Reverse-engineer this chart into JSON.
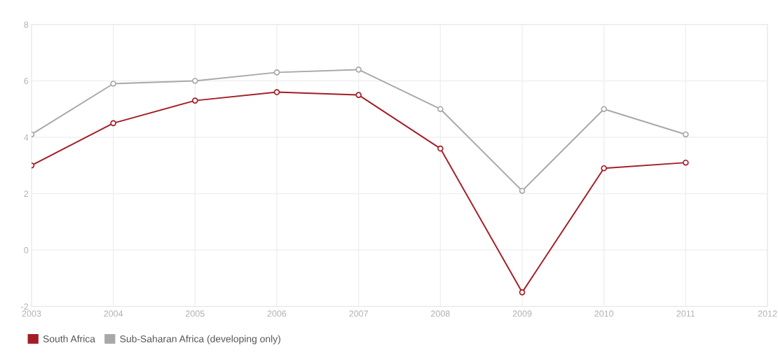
{
  "chart_data": {
    "type": "line",
    "x": [
      2003,
      2004,
      2005,
      2006,
      2007,
      2008,
      2009,
      2010,
      2011
    ],
    "series": [
      {
        "name": "South Africa",
        "color": "#a31d25",
        "values": [
          3.0,
          4.5,
          5.3,
          5.6,
          5.5,
          3.6,
          -1.5,
          2.9,
          3.1
        ]
      },
      {
        "name": "Sub-Saharan Africa (developing only)",
        "color": "#a8a8a8",
        "values": [
          4.1,
          5.9,
          6.0,
          6.3,
          6.4,
          5.0,
          2.1,
          5.0,
          4.1
        ]
      }
    ],
    "xlim": [
      2003,
      2012
    ],
    "xticks": [
      2003,
      2004,
      2005,
      2006,
      2007,
      2008,
      2009,
      2010,
      2011,
      2012
    ],
    "ylim": [
      -2,
      8
    ],
    "yticks": [
      -2,
      0,
      2,
      4,
      6,
      8
    ],
    "grid": true,
    "legend": "bottom left",
    "marker": "circle",
    "line_style": "solid"
  }
}
